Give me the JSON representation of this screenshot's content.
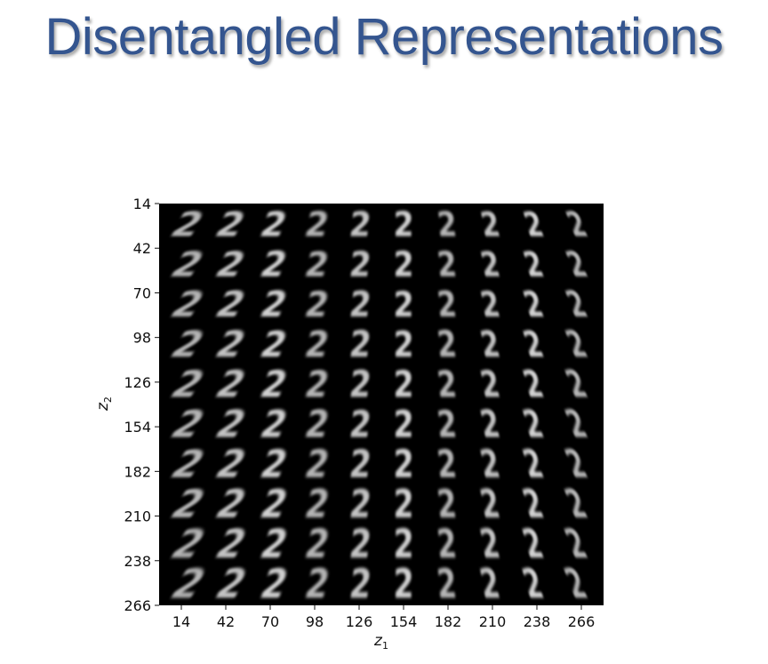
{
  "title": "Disentangled Representations",
  "figure": {
    "grid_rows": 10,
    "grid_cols": 10,
    "cell_content": "2",
    "x_axis": {
      "label": "z",
      "label_subscript": "1",
      "ticks": [
        "14",
        "42",
        "70",
        "98",
        "126",
        "154",
        "182",
        "210",
        "238",
        "266"
      ]
    },
    "y_axis": {
      "label": "z",
      "label_subscript": "2",
      "ticks": [
        "14",
        "42",
        "70",
        "98",
        "126",
        "154",
        "182",
        "210",
        "238",
        "266"
      ]
    },
    "colors": {
      "title": "#34558f",
      "panel": "#000000",
      "digit": "#e8e8e8"
    }
  }
}
